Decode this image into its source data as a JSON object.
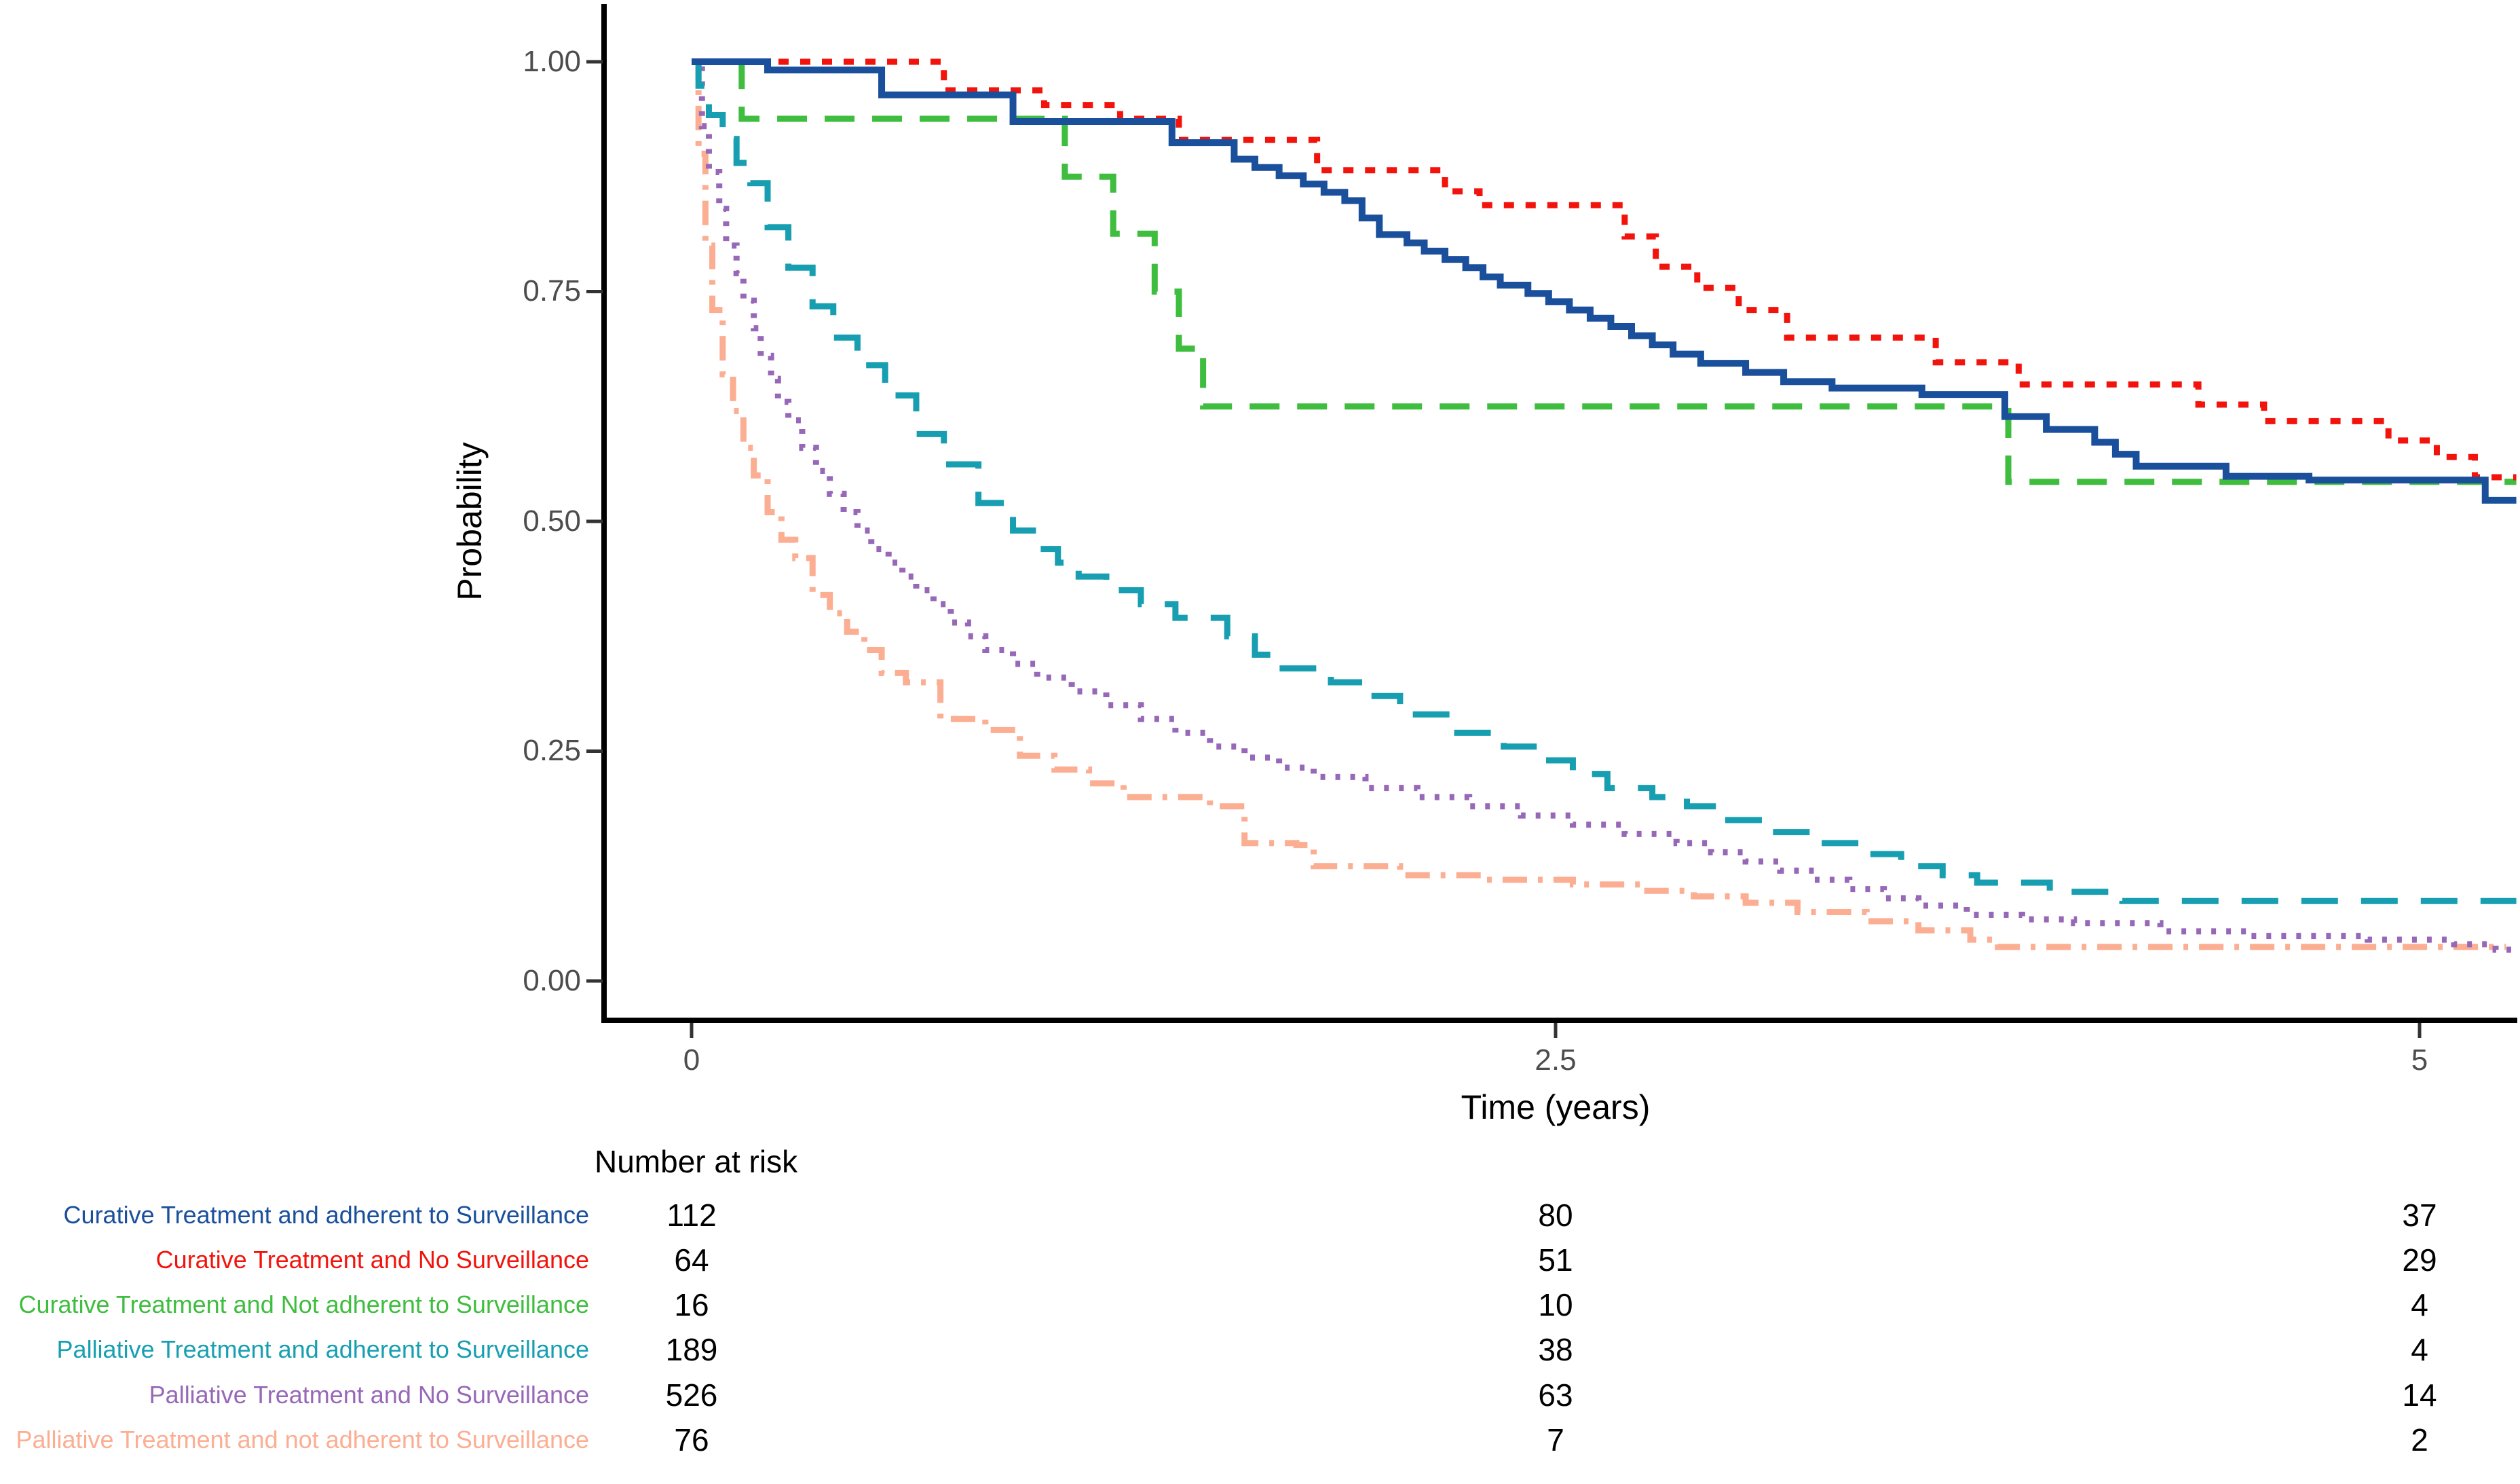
{
  "page": {
    "background": "#ffffff",
    "axis_color": "#000000",
    "tick_text_color": "#4d4d4d"
  },
  "chart_data": {
    "type": "line",
    "subtype": "kaplan-meier-step",
    "title": "",
    "xlabel": "Time (years)",
    "ylabel": "Probability",
    "xlim": [
      0,
      5.3
    ],
    "ylim": [
      0,
      1
    ],
    "grid": false,
    "legend_position": "risk-table-bottom-left",
    "x_ticks": [
      {
        "value": 0,
        "label": "0"
      },
      {
        "value": 2.5,
        "label": "2.5"
      },
      {
        "value": 5,
        "label": "5"
      }
    ],
    "y_ticks": [
      {
        "value": 1.0,
        "label": "1.00"
      },
      {
        "value": 0.75,
        "label": "0.75"
      },
      {
        "value": 0.5,
        "label": "0.50"
      },
      {
        "value": 0.25,
        "label": "0.25"
      },
      {
        "value": 0.0,
        "label": "0.00"
      }
    ],
    "series": [
      {
        "name": "Palliative Treatment and not adherent to Surveillance",
        "color": "#FBAE92",
        "dash": "36 16 7 16",
        "width": 9,
        "points": [
          [
            0,
            1
          ],
          [
            0.02,
            0.9
          ],
          [
            0.04,
            0.8
          ],
          [
            0.06,
            0.73
          ],
          [
            0.09,
            0.66
          ],
          [
            0.12,
            0.62
          ],
          [
            0.15,
            0.58
          ],
          [
            0.18,
            0.55
          ],
          [
            0.22,
            0.51
          ],
          [
            0.26,
            0.48
          ],
          [
            0.3,
            0.46
          ],
          [
            0.35,
            0.42
          ],
          [
            0.4,
            0.4
          ],
          [
            0.45,
            0.38
          ],
          [
            0.5,
            0.36
          ],
          [
            0.55,
            0.335
          ],
          [
            0.62,
            0.325
          ],
          [
            0.72,
            0.285
          ],
          [
            0.85,
            0.273
          ],
          [
            0.95,
            0.245
          ],
          [
            1.05,
            0.23
          ],
          [
            1.15,
            0.215
          ],
          [
            1.25,
            0.2
          ],
          [
            1.5,
            0.19
          ],
          [
            1.6,
            0.15
          ],
          [
            1.75,
            0.148
          ],
          [
            1.8,
            0.125
          ],
          [
            2.05,
            0.115
          ],
          [
            2.3,
            0.11
          ],
          [
            2.55,
            0.105
          ],
          [
            2.75,
            0.098
          ],
          [
            2.9,
            0.092
          ],
          [
            3.05,
            0.085
          ],
          [
            3.2,
            0.075
          ],
          [
            3.4,
            0.065
          ],
          [
            3.55,
            0.055
          ],
          [
            3.7,
            0.045
          ],
          [
            3.78,
            0.037
          ],
          [
            5.25,
            0.037
          ]
        ]
      },
      {
        "name": "Palliative Treatment and No Surveillance",
        "color": "#9768B8",
        "dash": "7 15",
        "width": 9,
        "points": [
          [
            0,
            1
          ],
          [
            0.03,
            0.93
          ],
          [
            0.05,
            0.88
          ],
          [
            0.08,
            0.84
          ],
          [
            0.1,
            0.8
          ],
          [
            0.13,
            0.77
          ],
          [
            0.15,
            0.74
          ],
          [
            0.18,
            0.71
          ],
          [
            0.2,
            0.68
          ],
          [
            0.23,
            0.655
          ],
          [
            0.25,
            0.63
          ],
          [
            0.28,
            0.61
          ],
          [
            0.32,
            0.58
          ],
          [
            0.36,
            0.555
          ],
          [
            0.4,
            0.53
          ],
          [
            0.44,
            0.51
          ],
          [
            0.48,
            0.49
          ],
          [
            0.52,
            0.47
          ],
          [
            0.57,
            0.455
          ],
          [
            0.61,
            0.44
          ],
          [
            0.65,
            0.425
          ],
          [
            0.7,
            0.41
          ],
          [
            0.75,
            0.39
          ],
          [
            0.8,
            0.375
          ],
          [
            0.85,
            0.36
          ],
          [
            0.93,
            0.345
          ],
          [
            1,
            0.33
          ],
          [
            1.1,
            0.315
          ],
          [
            1.2,
            0.3
          ],
          [
            1.3,
            0.285
          ],
          [
            1.4,
            0.27
          ],
          [
            1.5,
            0.255
          ],
          [
            1.6,
            0.243
          ],
          [
            1.7,
            0.232
          ],
          [
            1.8,
            0.222
          ],
          [
            1.95,
            0.21
          ],
          [
            2.1,
            0.2
          ],
          [
            2.25,
            0.19
          ],
          [
            2.4,
            0.18
          ],
          [
            2.55,
            0.17
          ],
          [
            2.7,
            0.16
          ],
          [
            2.85,
            0.15
          ],
          [
            2.95,
            0.14
          ],
          [
            3.05,
            0.13
          ],
          [
            3.15,
            0.12
          ],
          [
            3.25,
            0.11
          ],
          [
            3.35,
            0.1
          ],
          [
            3.45,
            0.09
          ],
          [
            3.55,
            0.082
          ],
          [
            3.69,
            0.072
          ],
          [
            3.85,
            0.067
          ],
          [
            4,
            0.063
          ],
          [
            4.25,
            0.054
          ],
          [
            4.5,
            0.049
          ],
          [
            4.85,
            0.045
          ],
          [
            5.1,
            0.04
          ],
          [
            5.22,
            0.034
          ],
          [
            5.28,
            0.033
          ]
        ]
      },
      {
        "name": "Palliative Treatment and adherent to Surveillance",
        "color": "#179FB1",
        "dash": "54 34",
        "width": 9,
        "points": [
          [
            0,
            1
          ],
          [
            0.02,
            0.974
          ],
          [
            0.05,
            0.942
          ],
          [
            0.09,
            0.916
          ],
          [
            0.13,
            0.89
          ],
          [
            0.17,
            0.868
          ],
          [
            0.22,
            0.82
          ],
          [
            0.28,
            0.776
          ],
          [
            0.35,
            0.734
          ],
          [
            0.41,
            0.7
          ],
          [
            0.48,
            0.67
          ],
          [
            0.56,
            0.637
          ],
          [
            0.65,
            0.595
          ],
          [
            0.73,
            0.562
          ],
          [
            0.83,
            0.52
          ],
          [
            0.93,
            0.49
          ],
          [
            1,
            0.47
          ],
          [
            1.06,
            0.455
          ],
          [
            1.12,
            0.44
          ],
          [
            1.2,
            0.425
          ],
          [
            1.3,
            0.41
          ],
          [
            1.4,
            0.395
          ],
          [
            1.55,
            0.375
          ],
          [
            1.63,
            0.355
          ],
          [
            1.7,
            0.34
          ],
          [
            1.85,
            0.325
          ],
          [
            1.95,
            0.31
          ],
          [
            2.05,
            0.29
          ],
          [
            2.2,
            0.27
          ],
          [
            2.35,
            0.255
          ],
          [
            2.45,
            0.24
          ],
          [
            2.55,
            0.225
          ],
          [
            2.65,
            0.21
          ],
          [
            2.78,
            0.2
          ],
          [
            2.88,
            0.19
          ],
          [
            2.97,
            0.175
          ],
          [
            3.1,
            0.162
          ],
          [
            3.25,
            0.15
          ],
          [
            3.4,
            0.138
          ],
          [
            3.5,
            0.125
          ],
          [
            3.62,
            0.115
          ],
          [
            3.72,
            0.107
          ],
          [
            3.93,
            0.097
          ],
          [
            4.14,
            0.087
          ],
          [
            5.28,
            0.087
          ]
        ]
      },
      {
        "name": "Curative Treatment and Not adherent to Surveillance",
        "color": "#3EBD3E",
        "dash": "44 26",
        "width": 9,
        "points": [
          [
            0,
            1
          ],
          [
            0.145,
            0.938
          ],
          [
            1.08,
            0.875
          ],
          [
            1.22,
            0.813
          ],
          [
            1.34,
            0.75
          ],
          [
            1.41,
            0.688
          ],
          [
            1.48,
            0.625
          ],
          [
            3.81,
            0.543
          ],
          [
            5.28,
            0.543
          ]
        ]
      },
      {
        "name": "Curative Treatment and No Surveillance",
        "color": "#F2140C",
        "dash": "15 17",
        "width": 9,
        "points": [
          [
            0,
            1
          ],
          [
            0.73,
            0.969
          ],
          [
            1.02,
            0.953
          ],
          [
            1.24,
            0.938
          ],
          [
            1.41,
            0.915
          ],
          [
            1.81,
            0.882
          ],
          [
            2.18,
            0.859
          ],
          [
            2.28,
            0.844
          ],
          [
            2.7,
            0.81
          ],
          [
            2.79,
            0.777
          ],
          [
            2.91,
            0.754
          ],
          [
            3.03,
            0.73
          ],
          [
            3.17,
            0.7
          ],
          [
            3.6,
            0.673
          ],
          [
            3.84,
            0.649
          ],
          [
            4.36,
            0.627
          ],
          [
            4.55,
            0.609
          ],
          [
            4.91,
            0.588
          ],
          [
            5.05,
            0.57
          ],
          [
            5.16,
            0.548
          ],
          [
            5.28,
            0.548
          ]
        ]
      },
      {
        "name": "Curative Treatment and adherent to Surveillance",
        "color": "#1A4F9C",
        "dash": "",
        "width": 10,
        "points": [
          [
            0,
            1
          ],
          [
            0.22,
            0.991
          ],
          [
            0.55,
            0.964
          ],
          [
            0.93,
            0.935
          ],
          [
            1.39,
            0.912
          ],
          [
            1.57,
            0.894
          ],
          [
            1.63,
            0.885
          ],
          [
            1.7,
            0.876
          ],
          [
            1.77,
            0.867
          ],
          [
            1.83,
            0.858
          ],
          [
            1.89,
            0.849
          ],
          [
            1.94,
            0.83
          ],
          [
            1.99,
            0.812
          ],
          [
            2.07,
            0.803
          ],
          [
            2.12,
            0.794
          ],
          [
            2.18,
            0.785
          ],
          [
            2.24,
            0.776
          ],
          [
            2.29,
            0.766
          ],
          [
            2.34,
            0.757
          ],
          [
            2.42,
            0.748
          ],
          [
            2.48,
            0.739
          ],
          [
            2.54,
            0.73
          ],
          [
            2.6,
            0.721
          ],
          [
            2.66,
            0.712
          ],
          [
            2.72,
            0.702
          ],
          [
            2.78,
            0.692
          ],
          [
            2.84,
            0.682
          ],
          [
            2.92,
            0.672
          ],
          [
            3.05,
            0.662
          ],
          [
            3.16,
            0.652
          ],
          [
            3.3,
            0.645
          ],
          [
            3.56,
            0.638
          ],
          [
            3.8,
            0.614
          ],
          [
            3.92,
            0.6
          ],
          [
            4.06,
            0.586
          ],
          [
            4.12,
            0.573
          ],
          [
            4.18,
            0.56
          ],
          [
            4.44,
            0.549
          ],
          [
            4.68,
            0.545
          ],
          [
            5.19,
            0.523
          ],
          [
            5.28,
            0.523
          ]
        ]
      }
    ]
  },
  "risk_table": {
    "title": "Number at risk",
    "time_points": [
      "0",
      "2.5",
      "5"
    ],
    "rows": [
      {
        "label": "Curative Treatment and adherent to Surveillance",
        "color": "#1A4F9C",
        "counts": [
          112,
          80,
          37
        ]
      },
      {
        "label": "Curative Treatment and No Surveillance",
        "color": "#F2140C",
        "counts": [
          64,
          51,
          29
        ]
      },
      {
        "label": "Curative Treatment and Not adherent to Surveillance",
        "color": "#3EBD3E",
        "counts": [
          16,
          10,
          4
        ]
      },
      {
        "label": "Palliative Treatment and adherent to Surveillance",
        "color": "#179FB1",
        "counts": [
          189,
          38,
          4
        ]
      },
      {
        "label": "Palliative Treatment and No Surveillance",
        "color": "#9768B8",
        "counts": [
          526,
          63,
          14
        ]
      },
      {
        "label": "Palliative Treatment and not adherent to Surveillance",
        "color": "#FBAE92",
        "counts": [
          76,
          7,
          2
        ]
      }
    ]
  }
}
